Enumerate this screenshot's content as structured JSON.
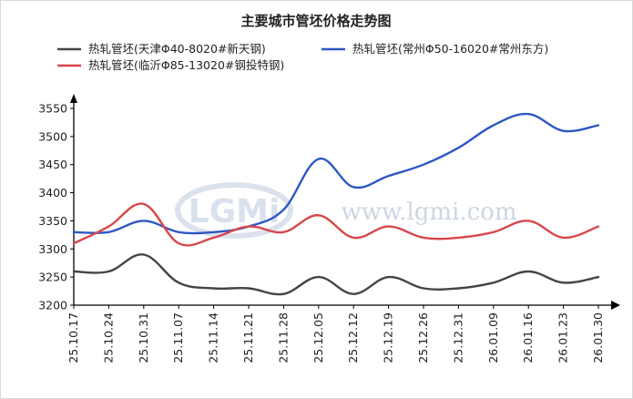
{
  "chart_data": {
    "type": "line",
    "title": "主要城市管坯价格走势图",
    "categories": [
      "25.10.17",
      "25.10.24",
      "25.10.31",
      "25.11.07",
      "25.11.14",
      "25.11.21",
      "25.11.28",
      "25.12.05",
      "25.12.12",
      "25.12.19",
      "25.12.26",
      "25.12.31",
      "26.01.09",
      "26.01.16",
      "26.01.23",
      "26.01.30"
    ],
    "ylim": [
      3200,
      3550
    ],
    "yticks": [
      3200,
      3250,
      3300,
      3350,
      3400,
      3450,
      3500,
      3550
    ],
    "legend_position": "top",
    "grid": false,
    "series": [
      {
        "name": "热轧管坯(天津Φ40-8020#新天钢)",
        "color": "#444444",
        "values": [
          3260,
          3260,
          3290,
          3240,
          3230,
          3230,
          3220,
          3250,
          3220,
          3250,
          3230,
          3230,
          3240,
          3260,
          3240,
          3250
        ]
      },
      {
        "name": "热轧管坯(常州Φ50-16020#常州东方)",
        "color": "#2e58c2",
        "values": [
          3330,
          3330,
          3350,
          3330,
          3330,
          3340,
          3370,
          3460,
          3410,
          3430,
          3450,
          3480,
          3520,
          3540,
          3510,
          3520
        ]
      },
      {
        "name": "热轧管坯(临沂Φ85-13020#钢投特钢)",
        "color": "#d9474a",
        "values": [
          3310,
          3340,
          3380,
          3310,
          3320,
          3340,
          3330,
          3360,
          3320,
          3340,
          3320,
          3320,
          3330,
          3350,
          3320,
          3340
        ]
      }
    ]
  },
  "watermark": {
    "logo": "LGMi",
    "url": "www.lgmi.com"
  }
}
